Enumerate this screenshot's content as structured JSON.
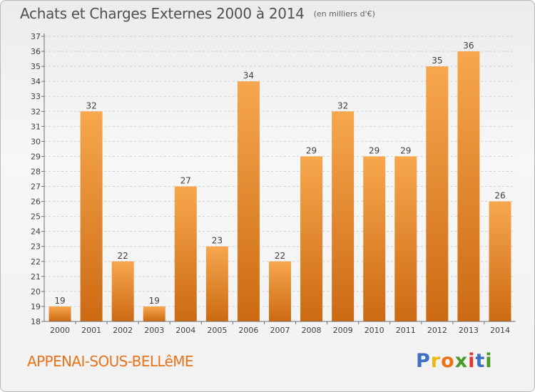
{
  "header": {
    "title": "Achats et Charges Externes 2000 à 2014",
    "subtitle": "(en milliers d'€)"
  },
  "footer": {
    "commune": "APPENAI-SOUS-BELLêME",
    "brand": [
      "P",
      "r",
      "o",
      "x",
      "i",
      "t",
      "i"
    ],
    "brand_colors": [
      "#3d6fc4",
      "#e9b90f",
      "#e8731a",
      "#4a9a2a",
      "#e5362b",
      "#3d6fc4",
      "#4a9a2a"
    ]
  },
  "colors": {
    "bar_top": "#f7a74d",
    "bar_bottom": "#cc6a12",
    "grid": "#d0d0d0",
    "axis": "#707070"
  },
  "chart_data": {
    "type": "bar",
    "title": "Achats et Charges Externes 2000 à 2014",
    "subtitle": "(en milliers d'€)",
    "categories": [
      "2000",
      "2001",
      "2002",
      "2003",
      "2004",
      "2005",
      "2006",
      "2007",
      "2008",
      "2009",
      "2010",
      "2011",
      "2012",
      "2013",
      "2014"
    ],
    "values": [
      19,
      32,
      22,
      19,
      27,
      23,
      34,
      22,
      29,
      32,
      29,
      29,
      35,
      36,
      26
    ],
    "yticks": [
      "18",
      "19",
      "20",
      "21",
      "22",
      "23",
      "24",
      "25",
      "26",
      "27",
      "28",
      "29",
      "30",
      "31",
      "32",
      "33",
      "34",
      "35",
      "36",
      "37"
    ],
    "ylim": [
      18,
      37
    ],
    "grid": true,
    "xlabel": "",
    "ylabel": ""
  }
}
